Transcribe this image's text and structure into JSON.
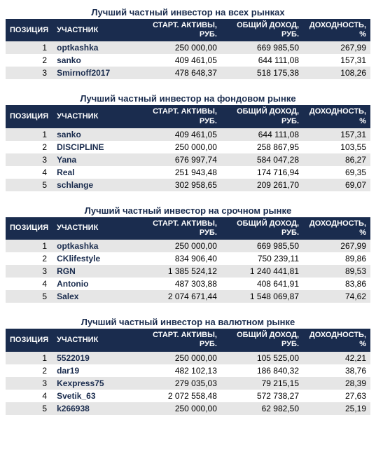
{
  "colors": {
    "header_bg": "#1a2c4e",
    "header_text": "#ffffff",
    "title_text": "#1a2c4e",
    "row_bg_odd": "#e6e6e6",
    "row_bg_even": "#ffffff",
    "user_text": "#1a2c4e",
    "body_text": "#000000",
    "page_bg": "#ffffff"
  },
  "columns": {
    "pos": "ПОЗИЦИЯ",
    "user": "УЧАСТНИК",
    "start": "СТАРТ. АКТИВЫ, РУБ.",
    "income": "ОБЩИЙ ДОХОД, РУБ.",
    "yield": "ДОХОДНОСТЬ, %"
  },
  "sections": [
    {
      "title": "Лучший частный инвестор на всех рынках",
      "rows": [
        {
          "pos": "1",
          "user": "optkashka",
          "start": "250 000,00",
          "income": "669 985,50",
          "yield": "267,99"
        },
        {
          "pos": "2",
          "user": "sanko",
          "start": "409 461,05",
          "income": "644 111,08",
          "yield": "157,31"
        },
        {
          "pos": "3",
          "user": "Smirnoff2017",
          "start": "478 648,37",
          "income": "518 175,38",
          "yield": "108,26"
        }
      ]
    },
    {
      "title": "Лучший частный инвестор на фондовом рынке",
      "rows": [
        {
          "pos": "1",
          "user": "sanko",
          "start": "409 461,05",
          "income": "644 111,08",
          "yield": "157,31"
        },
        {
          "pos": "2",
          "user": "DISCIPLINE",
          "start": "250 000,00",
          "income": "258 867,95",
          "yield": "103,55"
        },
        {
          "pos": "3",
          "user": "Yana",
          "start": "676 997,74",
          "income": "584 047,28",
          "yield": "86,27"
        },
        {
          "pos": "4",
          "user": "Real",
          "start": "251 943,48",
          "income": "174 716,94",
          "yield": "69,35"
        },
        {
          "pos": "5",
          "user": "schlange",
          "start": "302 958,65",
          "income": "209 261,70",
          "yield": "69,07"
        }
      ]
    },
    {
      "title": "Лучший частный инвестор на срочном рынке",
      "rows": [
        {
          "pos": "1",
          "user": "optkashka",
          "start": "250 000,00",
          "income": "669 985,50",
          "yield": "267,99"
        },
        {
          "pos": "2",
          "user": "CKlifestyle",
          "start": "834 906,40",
          "income": "750 239,11",
          "yield": "89,86"
        },
        {
          "pos": "3",
          "user": "RGN",
          "start": "1 385 524,12",
          "income": "1 240 441,81",
          "yield": "89,53"
        },
        {
          "pos": "4",
          "user": "Antonio",
          "start": "487 303,88",
          "income": "408 641,91",
          "yield": "83,86"
        },
        {
          "pos": "5",
          "user": "Salex",
          "start": "2 074 671,44",
          "income": "1 548 069,87",
          "yield": "74,62"
        }
      ]
    },
    {
      "title": "Лучший частный инвестор на валютном рынке",
      "rows": [
        {
          "pos": "1",
          "user": "5522019",
          "start": "250 000,00",
          "income": "105 525,00",
          "yield": "42,21"
        },
        {
          "pos": "2",
          "user": "dar19",
          "start": "482 102,13",
          "income": "186 840,32",
          "yield": "38,76"
        },
        {
          "pos": "3",
          "user": "Kexpress75",
          "start": "279 035,03",
          "income": "79 215,15",
          "yield": "28,39"
        },
        {
          "pos": "4",
          "user": "Svetik_63",
          "start": "2 072 558,48",
          "income": "572 738,27",
          "yield": "27,63"
        },
        {
          "pos": "5",
          "user": "k266938",
          "start": "250 000,00",
          "income": "62 982,50",
          "yield": "25,19"
        }
      ]
    }
  ]
}
